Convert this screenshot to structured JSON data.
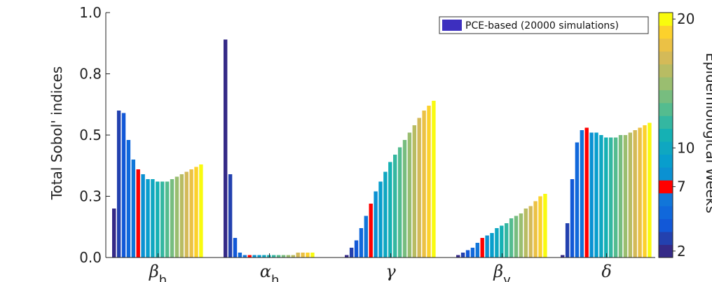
{
  "chart_data": {
    "type": "bar",
    "title": "",
    "ylabel": "Total Sobol' indices",
    "ylim": [
      0.0,
      1.0
    ],
    "yticks": [
      "0.0",
      "0.3",
      "0.5",
      "0.8",
      "1.0"
    ],
    "ytick_values": [
      0.0,
      0.25,
      0.5,
      0.75,
      1.0
    ],
    "categories": [
      {
        "symbol": "β",
        "sub": "h"
      },
      {
        "symbol": "α",
        "sub": "h"
      },
      {
        "symbol": "γ",
        "sub": ""
      },
      {
        "symbol": "β",
        "sub": "v"
      },
      {
        "symbol": "δ",
        "sub": ""
      }
    ],
    "weeks": [
      2,
      3,
      4,
      5,
      6,
      7,
      8,
      9,
      10,
      11,
      12,
      13,
      14,
      15,
      16,
      17,
      18,
      19,
      20
    ],
    "series_values": [
      [
        0.2,
        0.6,
        0.59,
        0.48,
        0.4,
        0.36,
        0.34,
        0.32,
        0.32,
        0.31,
        0.31,
        0.31,
        0.32,
        0.33,
        0.34,
        0.35,
        0.36,
        0.37,
        0.38
      ],
      [
        0.89,
        0.34,
        0.08,
        0.02,
        0.01,
        0.01,
        0.01,
        0.01,
        0.01,
        0.01,
        0.01,
        0.01,
        0.01,
        0.01,
        0.01,
        0.02,
        0.02,
        0.02,
        0.02
      ],
      [
        0.01,
        0.04,
        0.07,
        0.12,
        0.17,
        0.22,
        0.27,
        0.31,
        0.35,
        0.39,
        0.42,
        0.45,
        0.48,
        0.51,
        0.54,
        0.57,
        0.6,
        0.62,
        0.64
      ],
      [
        0.01,
        0.02,
        0.03,
        0.04,
        0.06,
        0.08,
        0.09,
        0.1,
        0.12,
        0.13,
        0.14,
        0.16,
        0.17,
        0.18,
        0.2,
        0.21,
        0.23,
        0.25,
        0.26
      ],
      [
        0.01,
        0.14,
        0.32,
        0.47,
        0.52,
        0.53,
        0.51,
        0.51,
        0.5,
        0.49,
        0.49,
        0.49,
        0.5,
        0.5,
        0.51,
        0.52,
        0.53,
        0.54,
        0.55
      ]
    ],
    "highlight_week": 7,
    "highlight_color": "#ff0000",
    "legend": {
      "label": "PCE-based (20000 simulations)",
      "color": "#3d2fbf",
      "position": "top-right"
    },
    "colorbar": {
      "label": "Epidemiological Weeks",
      "ticks": [
        "2",
        "7",
        "10",
        "20"
      ],
      "tick_values": [
        2,
        7,
        10,
        20
      ],
      "range": [
        2,
        20
      ]
    }
  }
}
